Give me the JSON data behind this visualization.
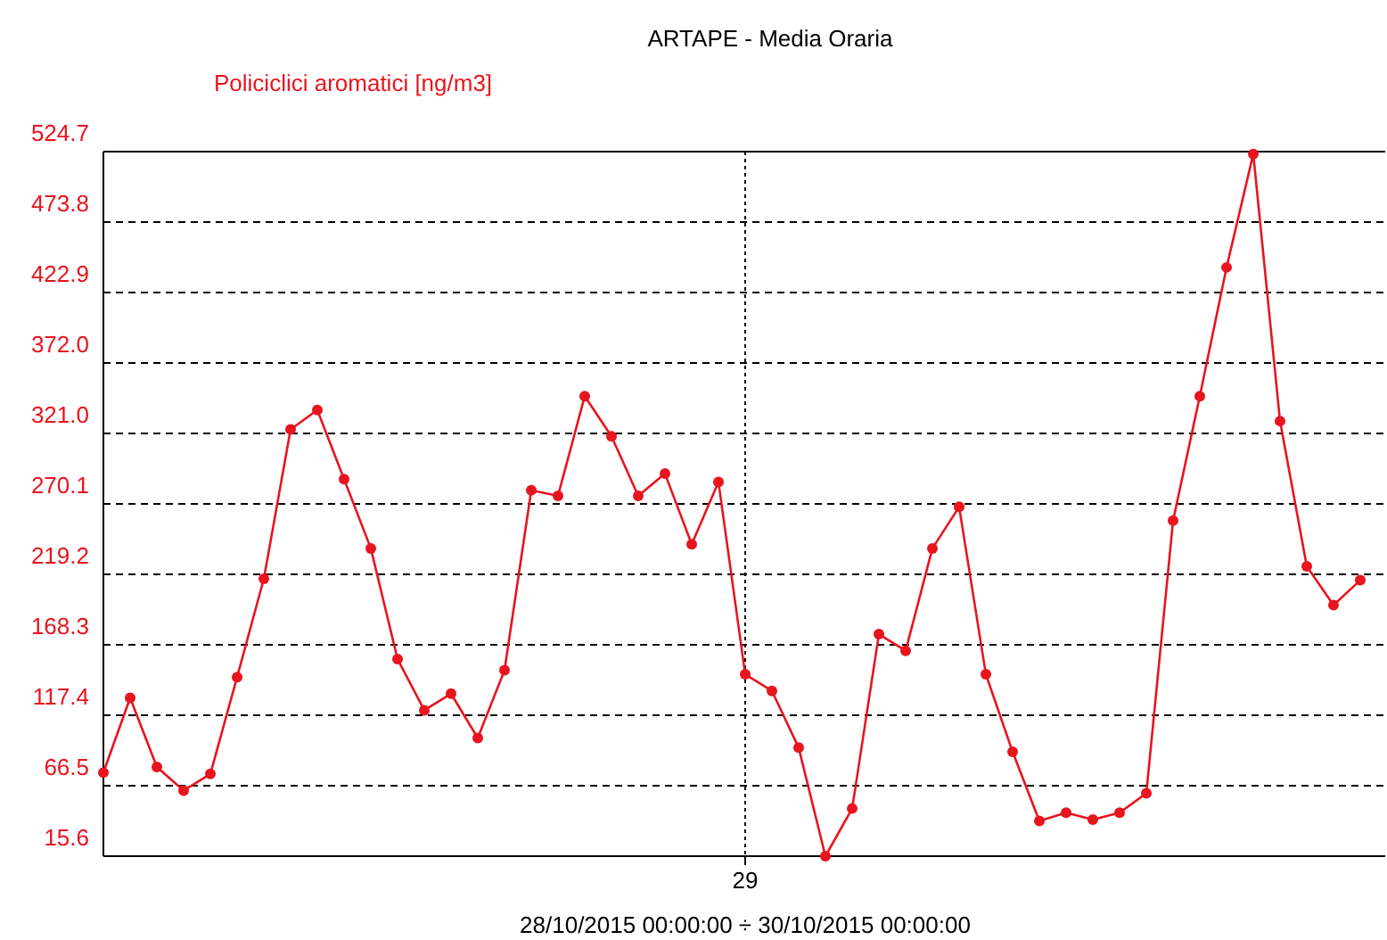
{
  "chart_data": {
    "type": "line",
    "title": "ARTAPE - Media Oraria",
    "ylabel": "Policiclici aromatici [ng/m3]",
    "xlabel": "28/10/2015 00:00:00 ÷ 30/10/2015 00:00:00",
    "categories": [
      null,
      null,
      null,
      null,
      null,
      null,
      null,
      null,
      null,
      null,
      null,
      null,
      null,
      null,
      null,
      null,
      null,
      null,
      null,
      null,
      null,
      null,
      null,
      null,
      "29",
      null,
      null,
      null,
      null,
      null,
      null,
      null,
      null,
      null,
      null,
      null,
      null,
      null,
      null,
      null,
      null,
      null,
      null,
      null,
      null,
      null,
      null,
      null
    ],
    "series": [
      {
        "color": "#e8141e",
        "values": [
          76,
          130,
          80,
          63,
          75,
          145,
          216,
          324,
          338,
          288,
          238,
          158,
          121,
          133,
          101,
          150,
          280,
          276,
          348,
          319,
          276,
          292,
          241,
          286,
          147,
          135,
          94,
          15.6,
          50,
          176,
          164,
          238,
          268,
          147,
          91,
          41,
          47,
          42,
          47,
          61,
          258,
          348,
          441,
          523,
          330,
          225,
          197,
          215
        ]
      }
    ],
    "ylim": [
      15.6,
      524.7
    ],
    "yticks": [
      {
        "value": 15.6,
        "label": "15.6"
      },
      {
        "value": 66.5,
        "label": "66.5"
      },
      {
        "value": 117.4,
        "label": "117.4"
      },
      {
        "value": 168.3,
        "label": "168.3"
      },
      {
        "value": 219.2,
        "label": "219.2"
      },
      {
        "value": 270.1,
        "label": "270.1"
      },
      {
        "value": 321,
        "label": "321.0"
      },
      {
        "value": 372,
        "label": "372.0"
      },
      {
        "value": 422.9,
        "label": "422.9"
      },
      {
        "value": 473.8,
        "label": "473.8"
      },
      {
        "value": 524.7,
        "label": "524.7"
      }
    ],
    "grid": true,
    "marker": "circle",
    "line_style": "solid"
  }
}
